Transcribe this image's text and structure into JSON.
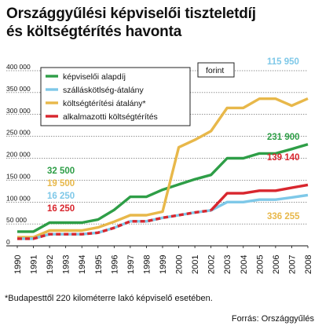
{
  "title_lines": [
    "Országgyűlési képviselői tiszteletdíj",
    "és költségtérítés havonta"
  ],
  "footnote": "*Budapesttől 220 kilométerre lakó képviselő esetében.",
  "source": "Forrás: Országgyűlés",
  "unit_box": "forint",
  "chart_data": {
    "type": "line",
    "title": "Országgyűlési képviselői tiszteletdíj és költségtérítés havonta",
    "ylabel": "forint",
    "ylim": [
      0,
      400000
    ],
    "yticks": [
      0,
      50000,
      100000,
      150000,
      200000,
      250000,
      300000,
      350000,
      400000
    ],
    "ytick_labels": [
      "0",
      "50 000",
      "100 000",
      "150 000",
      "200 000",
      "250 000",
      "300 000",
      "350 000",
      "400 000"
    ],
    "x": [
      1990,
      1991,
      1992,
      1993,
      1994,
      1995,
      1996,
      1997,
      1998,
      1999,
      2000,
      2001,
      2002,
      2003,
      2004,
      2005,
      2006,
      2007,
      2008
    ],
    "legend_position": "top-left",
    "grid": "horizontal",
    "series": [
      {
        "name": "képviselői alapdíj",
        "color": "#2e9e47",
        "start_label": "32 500",
        "end_label": "231 900",
        "values": [
          32500,
          32500,
          53000,
          53000,
          53000,
          60000,
          82000,
          112000,
          112000,
          128000,
          140000,
          152000,
          162000,
          200000,
          200000,
          211000,
          211000,
          221000,
          231900
        ]
      },
      {
        "name": "szálláskötlség-átalány",
        "color": "#7ec8e8",
        "start_label": "16 250",
        "end_label": "115 950",
        "values": [
          16250,
          16250,
          26500,
          26500,
          26500,
          30000,
          41000,
          56000,
          56000,
          64000,
          70000,
          76000,
          81000,
          100000,
          100000,
          105500,
          105500,
          110500,
          115950
        ]
      },
      {
        "name": "költségtérítési átalány*",
        "color": "#e8b84a",
        "start_label": "19 500",
        "end_label": "336 255",
        "values": [
          19500,
          19500,
          35000,
          35000,
          35000,
          42000,
          55000,
          70000,
          70000,
          78000,
          225000,
          242000,
          262000,
          315000,
          315000,
          336000,
          336000,
          320000,
          336255
        ]
      },
      {
        "name": "alkalmazotti költségtérítés",
        "color": "#d8262e",
        "start_label": "16 250",
        "end_label": "139 140",
        "values": [
          16250,
          16250,
          26500,
          26500,
          26500,
          30000,
          41000,
          56000,
          56000,
          64000,
          70000,
          76000,
          81000,
          120000,
          120000,
          126000,
          126000,
          132500,
          139140
        ]
      }
    ]
  }
}
